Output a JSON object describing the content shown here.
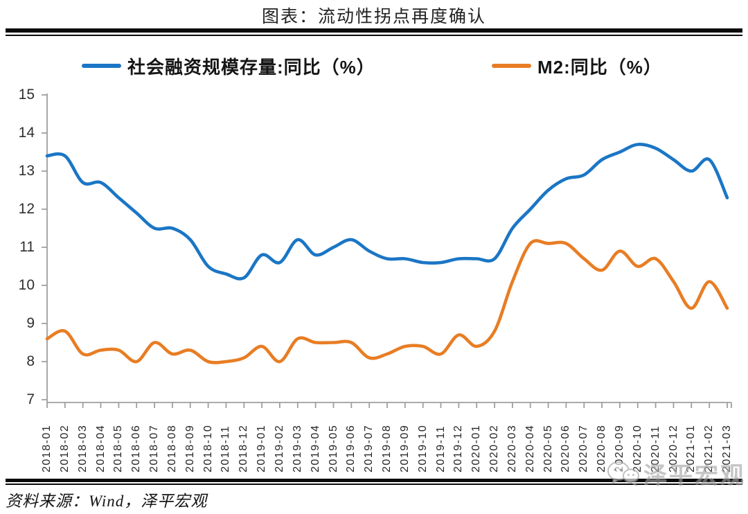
{
  "title": "图表：流动性拐点再度确认",
  "legend": [
    {
      "label": "社会融资规模存量:同比（%）",
      "color": "#1b76c5"
    },
    {
      "label": "M2:同比（%）",
      "color": "#e87d24"
    }
  ],
  "source_note": "资料来源：Wind，泽平宏观",
  "watermark": {
    "text": "泽平宏观",
    "icon": "wechat-bubbles-icon",
    "color": "#a3a3a3"
  },
  "chart_data": {
    "type": "line",
    "title": "图表：流动性拐点再度确认",
    "x": [
      "2018-01",
      "2018-02",
      "2018-03",
      "2018-04",
      "2018-05",
      "2018-06",
      "2018-07",
      "2018-08",
      "2018-09",
      "2018-10",
      "2018-11",
      "2018-12",
      "2019-01",
      "2019-02",
      "2019-03",
      "2019-04",
      "2019-05",
      "2019-06",
      "2019-07",
      "2019-08",
      "2019-09",
      "2019-10",
      "2019-11",
      "2019-12",
      "2020-01",
      "2020-02",
      "2020-03",
      "2020-04",
      "2020-05",
      "2020-06",
      "2020-07",
      "2020-08",
      "2020-09",
      "2020-10",
      "2020-11",
      "2020-12",
      "2021-01",
      "2021-02",
      "2021-03"
    ],
    "series": [
      {
        "name": "社会融资规模存量:同比（%）",
        "color": "#1b76c5",
        "values": [
          13.4,
          13.4,
          12.7,
          12.7,
          12.3,
          11.9,
          11.5,
          11.5,
          11.2,
          10.5,
          10.3,
          10.2,
          10.8,
          10.6,
          11.2,
          10.8,
          11.0,
          11.2,
          10.9,
          10.7,
          10.7,
          10.6,
          10.6,
          10.7,
          10.7,
          10.7,
          11.5,
          12.0,
          12.5,
          12.8,
          12.9,
          13.3,
          13.5,
          13.7,
          13.6,
          13.3,
          13.0,
          13.3,
          12.3
        ]
      },
      {
        "name": "M2:同比（%）",
        "color": "#e87d24",
        "values": [
          8.6,
          8.8,
          8.2,
          8.3,
          8.3,
          8.0,
          8.5,
          8.2,
          8.3,
          8.0,
          8.0,
          8.1,
          8.4,
          8.0,
          8.6,
          8.5,
          8.5,
          8.5,
          8.1,
          8.2,
          8.4,
          8.4,
          8.2,
          8.7,
          8.4,
          8.8,
          10.1,
          11.1,
          11.1,
          11.1,
          10.7,
          10.4,
          10.9,
          10.5,
          10.7,
          10.1,
          9.4,
          10.1,
          9.4
        ]
      }
    ],
    "xlabel": "",
    "ylabel": "",
    "ylim": [
      7,
      15
    ],
    "yticks": [
      7,
      8,
      9,
      10,
      11,
      12,
      13,
      14,
      15
    ],
    "grid": false,
    "smooth": true,
    "legend_position": "top",
    "axis_color": "#9e9e9e"
  }
}
